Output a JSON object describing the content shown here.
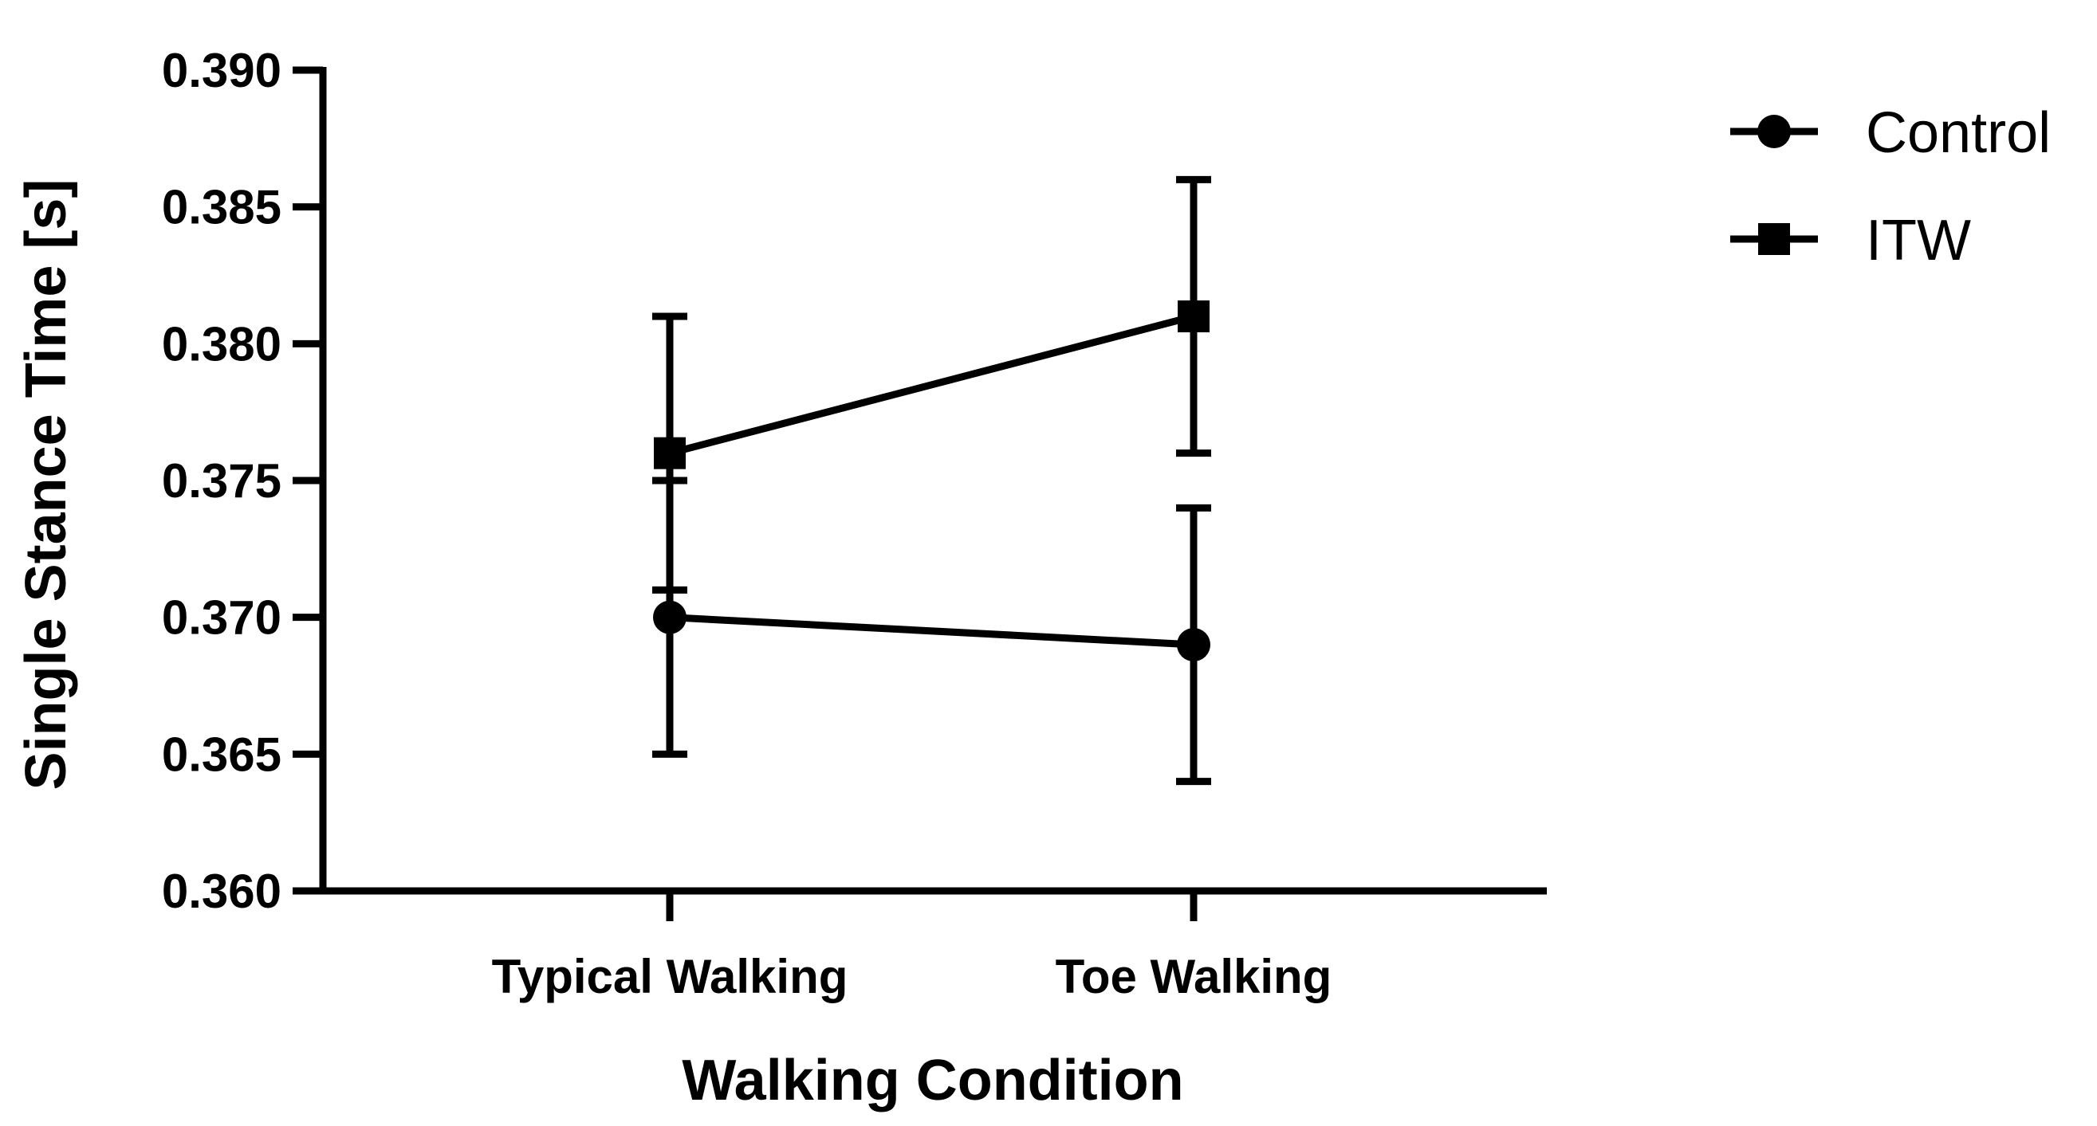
{
  "chart_data": {
    "type": "line",
    "categories": [
      "Typical Walking",
      "Toe Walking"
    ],
    "series": [
      {
        "name": "Control",
        "marker": "circle",
        "values": [
          0.37,
          0.369
        ],
        "error_low": [
          0.365,
          0.364
        ],
        "error_high": [
          0.375,
          0.374
        ]
      },
      {
        "name": "ITW",
        "marker": "square",
        "values": [
          0.376,
          0.381
        ],
        "error_low": [
          0.371,
          0.376
        ],
        "error_high": [
          0.381,
          0.386
        ]
      }
    ],
    "xlabel": "Walking Condition",
    "ylabel": "Single Stance Time [s]",
    "ylim": [
      0.36,
      0.39
    ],
    "yticks": [
      0.36,
      0.365,
      0.37,
      0.375,
      0.38,
      0.385,
      0.39
    ],
    "ytick_labels": [
      "0.360",
      "0.365",
      "0.370",
      "0.375",
      "0.380",
      "0.385",
      "0.390"
    ],
    "grid": false,
    "legend_position": "top-right",
    "colors": {
      "line": "#000000",
      "background": "#ffffff"
    }
  }
}
